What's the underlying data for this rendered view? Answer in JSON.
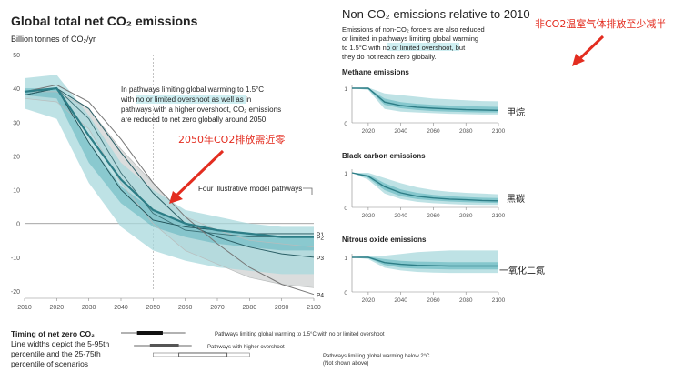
{
  "chart_data": [
    {
      "type": "area",
      "title": "Global total net CO₂ emissions",
      "ylabel": "Billion tonnes of CO₂/yr",
      "xlabel": "",
      "xlim": [
        2010,
        2100
      ],
      "ylim": [
        -20,
        50
      ],
      "x_ticks": [
        "2010",
        "2020",
        "2030",
        "2040",
        "2050",
        "2060",
        "2070",
        "2080",
        "2090",
        "2100"
      ],
      "y_ticks": [
        "50",
        "40",
        "30",
        "20",
        "10",
        "0",
        "-10",
        "-20"
      ],
      "grid": false,
      "annotation_lines": [
        "In pathways limiting global warming to 1.5°C",
        "with no or limited overshoot as well as in",
        "pathways with a higher overshoot, CO₂ emissions",
        "are reduced to net zero globally around 2050."
      ],
      "red_annotation": "2050年CO2排放需近零",
      "pathways_label": "Four illustrative model pathways",
      "x": [
        2010,
        2020,
        2030,
        2040,
        2050,
        2060,
        2070,
        2080,
        2090,
        2100
      ],
      "bands": [
        {
          "name": "gray",
          "upper": [
            39,
            39,
            34,
            22,
            12,
            2,
            -2,
            -5,
            -6,
            -7
          ],
          "lower": [
            37,
            36,
            28,
            12,
            0,
            -8,
            -12,
            -16,
            -18,
            -19
          ]
        },
        {
          "name": "outer",
          "upper": [
            43,
            44,
            32,
            18,
            10,
            4,
            2,
            0,
            -1,
            -1
          ],
          "lower": [
            34,
            31,
            12,
            -1,
            -8,
            -11,
            -13,
            -14,
            -15,
            -15
          ]
        },
        {
          "name": "inner",
          "upper": [
            40,
            40,
            24,
            11,
            4,
            0,
            -2,
            -3,
            -4,
            -4
          ],
          "lower": [
            38,
            37,
            18,
            6,
            -1,
            -4,
            -6,
            -7,
            -8,
            -8
          ]
        }
      ],
      "series": [
        {
          "name": "P1",
          "values": [
            38,
            40,
            24,
            10,
            1,
            -1,
            -2,
            -3,
            -3,
            -3
          ]
        },
        {
          "name": "P2",
          "values": [
            39,
            40,
            31,
            15,
            3,
            -2,
            -3,
            -4,
            -4,
            -4
          ]
        },
        {
          "name": "P3",
          "values": [
            38,
            40,
            34,
            21,
            9,
            0,
            -4,
            -7,
            -9,
            -10
          ]
        },
        {
          "name": "P4",
          "values": [
            39,
            41,
            36,
            25,
            12,
            2,
            -6,
            -13,
            -18,
            -21
          ]
        }
      ],
      "median": [
        39,
        40,
        26,
        13,
        4,
        0,
        -2,
        -3,
        -4,
        -4
      ]
    },
    {
      "type": "area",
      "title": "Non-CO₂ emissions relative to 2010",
      "subtitle_lines": [
        "Emissions of non-CO₂ forcers are also reduced",
        "or limited in pathways limiting global warming",
        "to 1.5°C with no or limited overshoot, but",
        "they do not reach zero globally."
      ],
      "red_annotation": "非CO2温室气体排放至少减半",
      "x_ticks": [
        "2020",
        "2040",
        "2060",
        "2080",
        "2100"
      ],
      "panels": [
        {
          "title": "Methane emissions",
          "cn_label": "甲烷",
          "x": [
            2010,
            2020,
            2030,
            2040,
            2050,
            2060,
            2070,
            2080,
            2090,
            2100
          ],
          "median": [
            1.0,
            1.0,
            0.6,
            0.5,
            0.45,
            0.42,
            0.4,
            0.38,
            0.37,
            0.36
          ],
          "outer_upper": [
            1.0,
            1.02,
            0.85,
            0.8,
            0.75,
            0.7,
            0.68,
            0.65,
            0.63,
            0.62
          ],
          "outer_lower": [
            1.0,
            0.95,
            0.4,
            0.32,
            0.3,
            0.28,
            0.26,
            0.25,
            0.24,
            0.24
          ],
          "inner_upper": [
            1.0,
            1.0,
            0.7,
            0.6,
            0.55,
            0.52,
            0.5,
            0.48,
            0.47,
            0.46
          ],
          "inner_lower": [
            1.0,
            0.97,
            0.52,
            0.42,
            0.37,
            0.34,
            0.32,
            0.31,
            0.3,
            0.3
          ],
          "y_ticks": [
            "1",
            "0"
          ]
        },
        {
          "title": "Black carbon emissions",
          "cn_label": "黑碳",
          "x": [
            2010,
            2020,
            2030,
            2040,
            2050,
            2060,
            2070,
            2080,
            2090,
            2100
          ],
          "median": [
            1.0,
            0.9,
            0.6,
            0.42,
            0.32,
            0.27,
            0.24,
            0.22,
            0.2,
            0.19
          ],
          "outer_upper": [
            1.0,
            1.0,
            0.85,
            0.7,
            0.58,
            0.5,
            0.45,
            0.42,
            0.4,
            0.38
          ],
          "outer_lower": [
            1.0,
            0.8,
            0.4,
            0.24,
            0.16,
            0.12,
            0.1,
            0.08,
            0.07,
            0.07
          ],
          "inner_upper": [
            1.0,
            0.95,
            0.7,
            0.52,
            0.42,
            0.36,
            0.32,
            0.3,
            0.28,
            0.27
          ],
          "inner_lower": [
            1.0,
            0.85,
            0.5,
            0.32,
            0.24,
            0.2,
            0.17,
            0.15,
            0.14,
            0.13
          ],
          "y_ticks": [
            "1",
            "0"
          ]
        },
        {
          "title": "Nitrous oxide emissions",
          "cn_label": "一氧化二氮",
          "x": [
            2010,
            2020,
            2030,
            2040,
            2050,
            2060,
            2070,
            2080,
            2090,
            2100
          ],
          "median": [
            1.0,
            1.0,
            0.85,
            0.8,
            0.77,
            0.76,
            0.75,
            0.75,
            0.75,
            0.75
          ],
          "outer_upper": [
            1.0,
            1.05,
            1.05,
            1.1,
            1.15,
            1.18,
            1.2,
            1.2,
            1.2,
            1.2
          ],
          "outer_lower": [
            1.0,
            0.95,
            0.7,
            0.62,
            0.58,
            0.56,
            0.55,
            0.55,
            0.55,
            0.55
          ],
          "inner_upper": [
            1.0,
            1.02,
            0.95,
            0.9,
            0.88,
            0.87,
            0.86,
            0.86,
            0.86,
            0.86
          ],
          "inner_lower": [
            1.0,
            0.98,
            0.78,
            0.7,
            0.67,
            0.66,
            0.65,
            0.65,
            0.65,
            0.65
          ],
          "y_ticks": [
            "1",
            "0"
          ]
        }
      ]
    }
  ],
  "timing": {
    "title": "Timing of net zero CO₂",
    "desc_lines": [
      "Line widths depict the 5-95th",
      "percentile and the 25-75th",
      "percentile of scenarios"
    ],
    "rows": [
      {
        "label": "Pathways limiting global warming to 1.5°C with no or limited overshoot",
        "outer": [
          2040,
          2060
        ],
        "inner": [
          2045,
          2053
        ],
        "style": "dark"
      },
      {
        "label": "Pathways with higher overshoot",
        "outer": [
          2044,
          2062
        ],
        "inner": [
          2049,
          2058
        ],
        "style": "mid"
      },
      {
        "label": "Pathways limiting global warming below 2°C",
        "label2": "(Not shown above)",
        "outer": [
          2050,
          2080
        ],
        "inner": [
          2058,
          2073
        ],
        "style": "open"
      }
    ]
  },
  "colors": {
    "band_outer": "#a8d8dc",
    "band_inner": "#5fb5bd",
    "median": "#2c7d86",
    "gray": "#d7d9d9",
    "red": "#e32d20",
    "text": "#222222",
    "hl_bg": "#cfeff2"
  }
}
